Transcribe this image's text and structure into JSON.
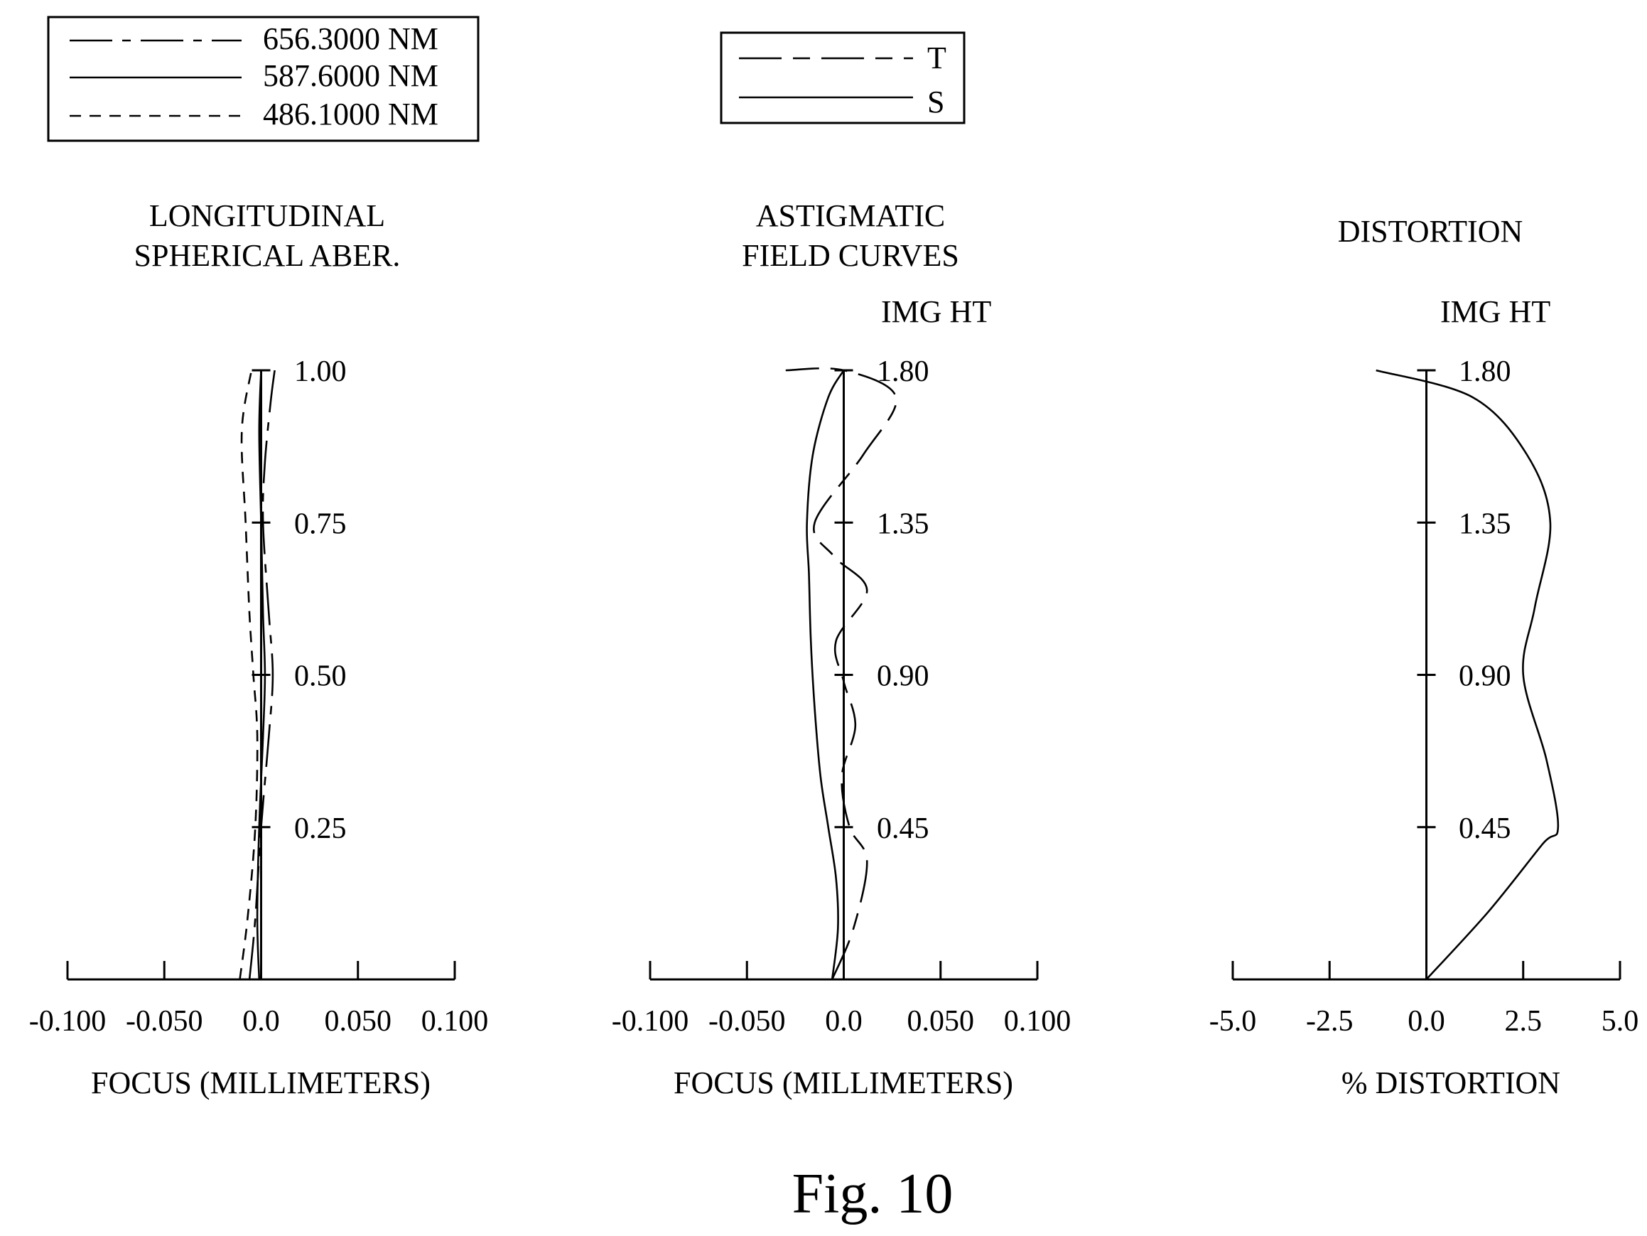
{
  "figure_label": "Fig. 10",
  "legends": {
    "wavelengths": [
      {
        "label": "656.3000 NM",
        "dash": "long-short"
      },
      {
        "label": "587.6000 NM",
        "dash": "solid"
      },
      {
        "label": "486.1000 NM",
        "dash": "short"
      }
    ],
    "field": [
      {
        "label": "T",
        "dash": "dashed"
      },
      {
        "label": "S",
        "dash": "solid"
      }
    ]
  },
  "chart_data": [
    {
      "type": "line",
      "title_lines": [
        "LONGITUDINAL",
        "SPHERICAL  ABER."
      ],
      "xlabel": "FOCUS (MILLIMETERS)",
      "ylabel": "",
      "xlim": [
        -0.1,
        0.1
      ],
      "ylim": [
        0,
        1.0
      ],
      "x_ticks": [
        -0.1,
        -0.05,
        0.0,
        0.05,
        0.1
      ],
      "x_tick_labels": [
        "-0.100",
        "-0.050",
        "0.0",
        "0.050",
        "0.100"
      ],
      "y_ticks": [
        0.25,
        0.5,
        0.75,
        1.0
      ],
      "y_tick_labels": [
        "0.25",
        "0.50",
        "0.75",
        "1.00"
      ],
      "series": [
        {
          "name": "656.3000 NM",
          "dash": "long-short",
          "points": [
            [
              -0.006,
              0
            ],
            [
              -0.003,
              0.1
            ],
            [
              0.0,
              0.25
            ],
            [
              0.004,
              0.4
            ],
            [
              0.006,
              0.5
            ],
            [
              0.004,
              0.6
            ],
            [
              0.001,
              0.75
            ],
            [
              0.002,
              0.85
            ],
            [
              0.005,
              0.95
            ],
            [
              0.007,
              1.0
            ]
          ]
        },
        {
          "name": "587.6000 NM",
          "dash": "solid",
          "points": [
            [
              -0.001,
              0
            ],
            [
              -0.002,
              0.1
            ],
            [
              -0.001,
              0.25
            ],
            [
              0.001,
              0.4
            ],
            [
              0.002,
              0.5
            ],
            [
              0.001,
              0.6
            ],
            [
              0.0,
              0.75
            ],
            [
              -0.001,
              0.9
            ],
            [
              0.0,
              1.0
            ]
          ]
        },
        {
          "name": "486.1000 NM",
          "dash": "short",
          "points": [
            [
              -0.011,
              0
            ],
            [
              -0.007,
              0.1
            ],
            [
              -0.003,
              0.25
            ],
            [
              -0.002,
              0.4
            ],
            [
              -0.004,
              0.5
            ],
            [
              -0.006,
              0.6
            ],
            [
              -0.008,
              0.75
            ],
            [
              -0.01,
              0.9
            ],
            [
              -0.005,
              1.0
            ]
          ]
        }
      ]
    },
    {
      "type": "line",
      "title_lines": [
        "ASTIGMATIC",
        "FIELD  CURVES"
      ],
      "ylabel": "IMG HT",
      "xlabel": "FOCUS (MILLIMETERS)",
      "xlim": [
        -0.1,
        0.1
      ],
      "ylim": [
        0,
        1.8
      ],
      "x_ticks": [
        -0.1,
        -0.05,
        0.0,
        0.05,
        0.1
      ],
      "x_tick_labels": [
        "-0.100",
        "-0.050",
        "0.0",
        "0.050",
        "0.100"
      ],
      "y_ticks": [
        0.45,
        0.9,
        1.35,
        1.8
      ],
      "y_tick_labels": [
        "0.45",
        "0.90",
        "1.35",
        "1.80"
      ],
      "series": [
        {
          "name": "T",
          "dash": "dashed",
          "points": [
            [
              -0.006,
              0
            ],
            [
              0.005,
              0.15
            ],
            [
              0.012,
              0.35
            ],
            [
              0.003,
              0.45
            ],
            [
              -0.001,
              0.6
            ],
            [
              0.006,
              0.75
            ],
            [
              0.0,
              0.88
            ],
            [
              -0.004,
              1.0
            ],
            [
              0.012,
              1.15
            ],
            [
              -0.005,
              1.25
            ],
            [
              -0.015,
              1.35
            ],
            [
              0.01,
              1.55
            ],
            [
              0.027,
              1.72
            ],
            [
              0.0,
              1.8
            ],
            [
              -0.03,
              1.8
            ]
          ]
        },
        {
          "name": "S",
          "dash": "solid",
          "points": [
            [
              -0.006,
              0
            ],
            [
              -0.003,
              0.15
            ],
            [
              -0.004,
              0.3
            ],
            [
              -0.008,
              0.45
            ],
            [
              -0.012,
              0.6
            ],
            [
              -0.015,
              0.8
            ],
            [
              -0.017,
              1.0
            ],
            [
              -0.018,
              1.2
            ],
            [
              -0.019,
              1.35
            ],
            [
              -0.016,
              1.55
            ],
            [
              -0.008,
              1.72
            ],
            [
              0.0,
              1.8
            ]
          ]
        }
      ]
    },
    {
      "type": "line",
      "title_lines": [
        "DISTORTION"
      ],
      "ylabel": "IMG HT",
      "xlabel": "% DISTORTION",
      "xlim": [
        -5.0,
        5.0
      ],
      "ylim": [
        0,
        1.8
      ],
      "x_ticks": [
        -5.0,
        -2.5,
        0.0,
        2.5,
        5.0
      ],
      "x_tick_labels": [
        "-5.0",
        "-2.5",
        "0.0",
        "2.5",
        "5.0"
      ],
      "y_ticks": [
        0.45,
        0.9,
        1.35,
        1.8
      ],
      "y_tick_labels": [
        "0.45",
        "0.90",
        "1.35",
        "1.80"
      ],
      "series": [
        {
          "name": "Distortion",
          "dash": "solid",
          "points": [
            [
              0.0,
              0
            ],
            [
              1.6,
              0.2
            ],
            [
              3.0,
              0.4
            ],
            [
              3.4,
              0.45
            ],
            [
              3.1,
              0.65
            ],
            [
              2.5,
              0.9
            ],
            [
              2.8,
              1.1
            ],
            [
              3.2,
              1.35
            ],
            [
              2.6,
              1.55
            ],
            [
              1.2,
              1.72
            ],
            [
              -1.3,
              1.8
            ]
          ]
        }
      ]
    }
  ]
}
